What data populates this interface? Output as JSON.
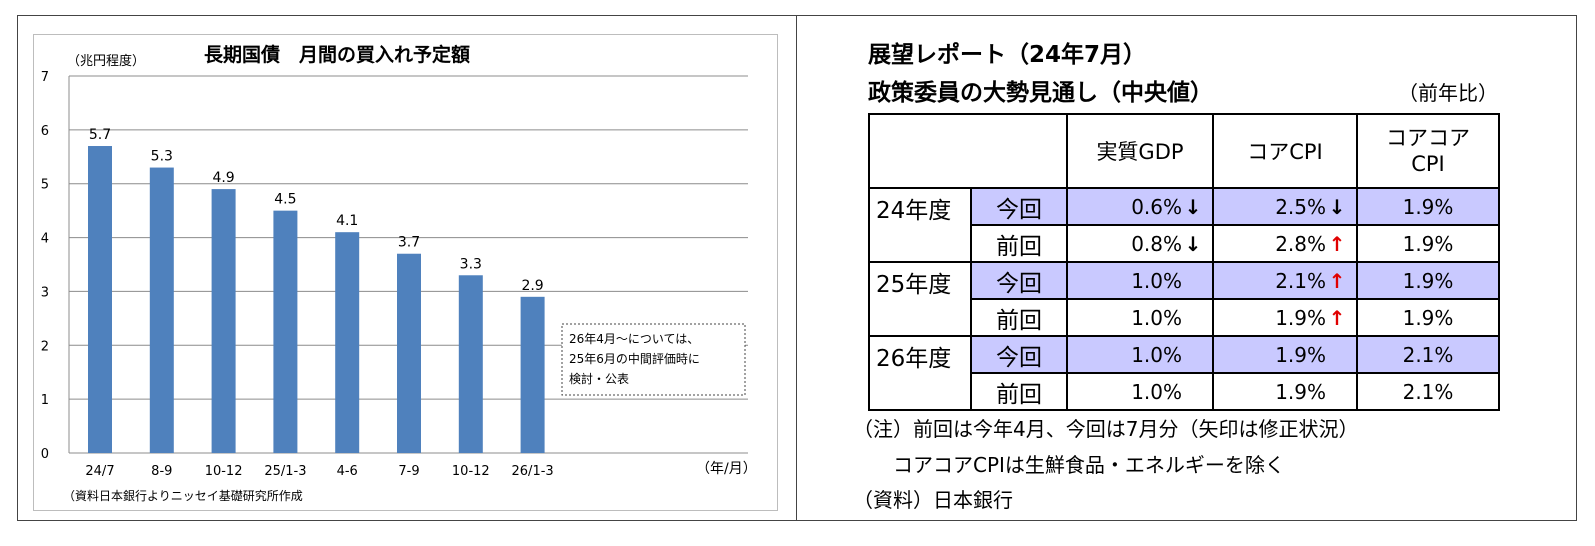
{
  "left_chart": {
    "unit_label": "（兆円程度）",
    "title": "長期国債　月間の買入れ予定額",
    "x_unit_label": "（年/月）",
    "source": "（資料日本銀行よりニッセイ基礎研究所作成",
    "annotation": [
      "26年4月～については、",
      "25年6月の中間評価時に",
      "検討・公表"
    ]
  },
  "chart_data": {
    "type": "bar",
    "title": "長期国債　月間の買入れ予定額",
    "ylabel": "（兆円程度）",
    "xlabel": "（年/月）",
    "categories": [
      "24/7",
      "8-9",
      "10-12",
      "25/1-3",
      "4-6",
      "7-9",
      "10-12",
      "26/1-3"
    ],
    "values": [
      5.7,
      5.3,
      4.9,
      4.5,
      4.1,
      3.7,
      3.3,
      2.9
    ],
    "ylim": [
      0,
      7
    ],
    "yticks": [
      0,
      1,
      2,
      3,
      4,
      5,
      6,
      7
    ],
    "grid": true,
    "bar_color": "#4f81bd",
    "data_labels": true
  },
  "right_panel": {
    "title_line1": "展望レポート（24年7月）",
    "title_line2": "政策委員の大勢見通し（中央値）",
    "unit": "（前年比）",
    "headers": [
      "実質GDP",
      "コアCPI",
      "コアコア\nCPI"
    ],
    "rows": [
      {
        "year": "24年度",
        "which": "今回",
        "highlight": true,
        "gdp": "0.6%",
        "gdp_arrow": "down",
        "cpi": "2.5%",
        "cpi_arrow": "down",
        "core": "1.9%"
      },
      {
        "year": "",
        "which": "前回",
        "highlight": false,
        "gdp": "0.8%",
        "gdp_arrow": "down",
        "cpi": "2.8%",
        "cpi_arrow": "up",
        "core": "1.9%"
      },
      {
        "year": "25年度",
        "which": "今回",
        "highlight": true,
        "gdp": "1.0%",
        "gdp_arrow": "",
        "cpi": "2.1%",
        "cpi_arrow": "up",
        "core": "1.9%"
      },
      {
        "year": "",
        "which": "前回",
        "highlight": false,
        "gdp": "1.0%",
        "gdp_arrow": "",
        "cpi": "1.9%",
        "cpi_arrow": "up",
        "core": "1.9%"
      },
      {
        "year": "26年度",
        "which": "今回",
        "highlight": true,
        "gdp": "1.0%",
        "gdp_arrow": "",
        "cpi": "1.9%",
        "cpi_arrow": "",
        "core": "2.1%"
      },
      {
        "year": "",
        "which": "前回",
        "highlight": false,
        "gdp": "1.0%",
        "gdp_arrow": "",
        "cpi": "1.9%",
        "cpi_arrow": "",
        "core": "2.1%"
      }
    ],
    "arrow_glyphs": {
      "down": "↓",
      "up": "↑"
    },
    "arrow_colors": {
      "down": "#000000",
      "up": "#e00000"
    },
    "highlight_color": "#c9c9ff",
    "notes": [
      "（注）前回は今年4月、今回は7月分（矢印は修正状況）",
      "　　コアコアCPIは生鮮食品・エネルギーを除く",
      "（資料）日本銀行"
    ]
  }
}
